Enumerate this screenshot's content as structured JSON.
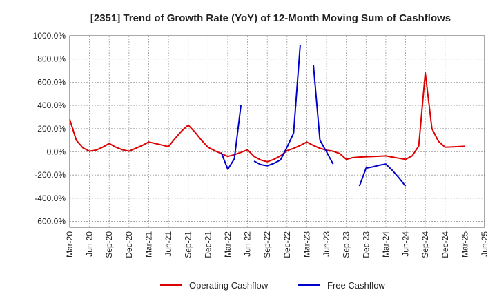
{
  "chart_data": {
    "type": "line",
    "title": "[2351]  Trend of Growth Rate (YoY) of 12-Month Moving Sum of Cashflows",
    "xlabel": "",
    "ylabel": "",
    "ylim": [
      -650,
      1000
    ],
    "yticks": [
      1000,
      800,
      600,
      400,
      200,
      0,
      -200,
      -400,
      -600
    ],
    "ytick_labels": [
      "1000.0%",
      "800.0%",
      "600.0%",
      "400.0%",
      "200.0%",
      "0.0%",
      "-200.0%",
      "-400.0%",
      "-600.0%"
    ],
    "x_start": "Mar-20",
    "x_end": "Jun-25",
    "x_ticks": [
      "Mar-20",
      "Jun-20",
      "Sep-20",
      "Dec-20",
      "Mar-21",
      "Jun-21",
      "Sep-21",
      "Dec-21",
      "Mar-22",
      "Jun-22",
      "Sep-22",
      "Dec-22",
      "Mar-23",
      "Jun-23",
      "Sep-23",
      "Dec-23",
      "Mar-24",
      "Jun-24",
      "Sep-24",
      "Dec-24",
      "Mar-25",
      "Jun-25"
    ],
    "grid": true,
    "legend_position": "bottom",
    "series": [
      {
        "name": "Operating Cashflow",
        "color": "#dd0000",
        "points": [
          [
            "Mar-20",
            280
          ],
          [
            "Apr-20",
            100
          ],
          [
            "May-20",
            35
          ],
          [
            "Jun-20",
            5
          ],
          [
            "Jul-20",
            15
          ],
          [
            "Aug-20",
            40
          ],
          [
            "Sep-20",
            72
          ],
          [
            "Oct-20",
            40
          ],
          [
            "Nov-20",
            18
          ],
          [
            "Dec-20",
            5
          ],
          [
            "Jan-21",
            30
          ],
          [
            "Feb-21",
            55
          ],
          [
            "Mar-21",
            85
          ],
          [
            "Apr-21",
            72
          ],
          [
            "May-21",
            58
          ],
          [
            "Jun-21",
            45
          ],
          [
            "Jul-21",
            115
          ],
          [
            "Aug-21",
            180
          ],
          [
            "Sep-21",
            230
          ],
          [
            "Oct-21",
            170
          ],
          [
            "Nov-21",
            100
          ],
          [
            "Dec-21",
            40
          ],
          [
            "Jan-22",
            10
          ],
          [
            "Feb-22",
            -15
          ],
          [
            "Mar-22",
            -40
          ],
          [
            "Apr-22",
            -25
          ],
          [
            "May-22",
            -5
          ],
          [
            "Jun-22",
            18
          ],
          [
            "Jul-22",
            -40
          ],
          [
            "Aug-22",
            -70
          ],
          [
            "Sep-22",
            -85
          ],
          [
            "Oct-22",
            -65
          ],
          [
            "Nov-22",
            -35
          ],
          [
            "Dec-22",
            10
          ],
          [
            "Jan-23",
            30
          ],
          [
            "Feb-23",
            55
          ],
          [
            "Mar-23",
            85
          ],
          [
            "Apr-23",
            55
          ],
          [
            "May-23",
            30
          ],
          [
            "Jun-23",
            15
          ],
          [
            "Jul-23",
            5
          ],
          [
            "Aug-23",
            -15
          ],
          [
            "Sep-23",
            -65
          ],
          [
            "Oct-23",
            -50
          ],
          [
            "Nov-23",
            -45
          ],
          [
            "Dec-23",
            -42
          ],
          [
            "Jan-24",
            -40
          ],
          [
            "Feb-24",
            -38
          ],
          [
            "Mar-24",
            -35
          ],
          [
            "Apr-24",
            -45
          ],
          [
            "May-24",
            -55
          ],
          [
            "Jun-24",
            -65
          ],
          [
            "Jul-24",
            -35
          ],
          [
            "Aug-24",
            50
          ],
          [
            "Sep-24",
            680
          ],
          [
            "Oct-24",
            200
          ],
          [
            "Nov-24",
            90
          ],
          [
            "Dec-24",
            40
          ],
          [
            "Jan-25",
            42
          ],
          [
            "Feb-25",
            45
          ],
          [
            "Mar-25",
            48
          ]
        ]
      },
      {
        "name": "Free Cashflow",
        "color": "#0000cc",
        "segments": [
          [
            [
              "Feb-22",
              -5
            ],
            [
              "Mar-22",
              -150
            ],
            [
              "Apr-22",
              -60
            ],
            [
              "May-22",
              400
            ]
          ],
          [
            [
              "Jul-22",
              -80
            ],
            [
              "Aug-22",
              -110
            ],
            [
              "Sep-22",
              -120
            ],
            [
              "Oct-22",
              -100
            ],
            [
              "Nov-22",
              -70
            ],
            [
              "Dec-22",
              40
            ],
            [
              "Jan-23",
              160
            ],
            [
              "Feb-23",
              920
            ]
          ],
          [
            [
              "Apr-23",
              750
            ],
            [
              "May-23",
              100
            ],
            [
              "Jun-23",
              0
            ],
            [
              "Jul-23",
              -105
            ]
          ],
          [
            [
              "Nov-23",
              -295
            ],
            [
              "Dec-23",
              -140
            ],
            [
              "Jan-24",
              -130
            ],
            [
              "Feb-24",
              -115
            ],
            [
              "Mar-24",
              -105
            ],
            [
              "Apr-24",
              -160
            ],
            [
              "May-24",
              -225
            ],
            [
              "Jun-24",
              -295
            ]
          ]
        ]
      }
    ]
  }
}
